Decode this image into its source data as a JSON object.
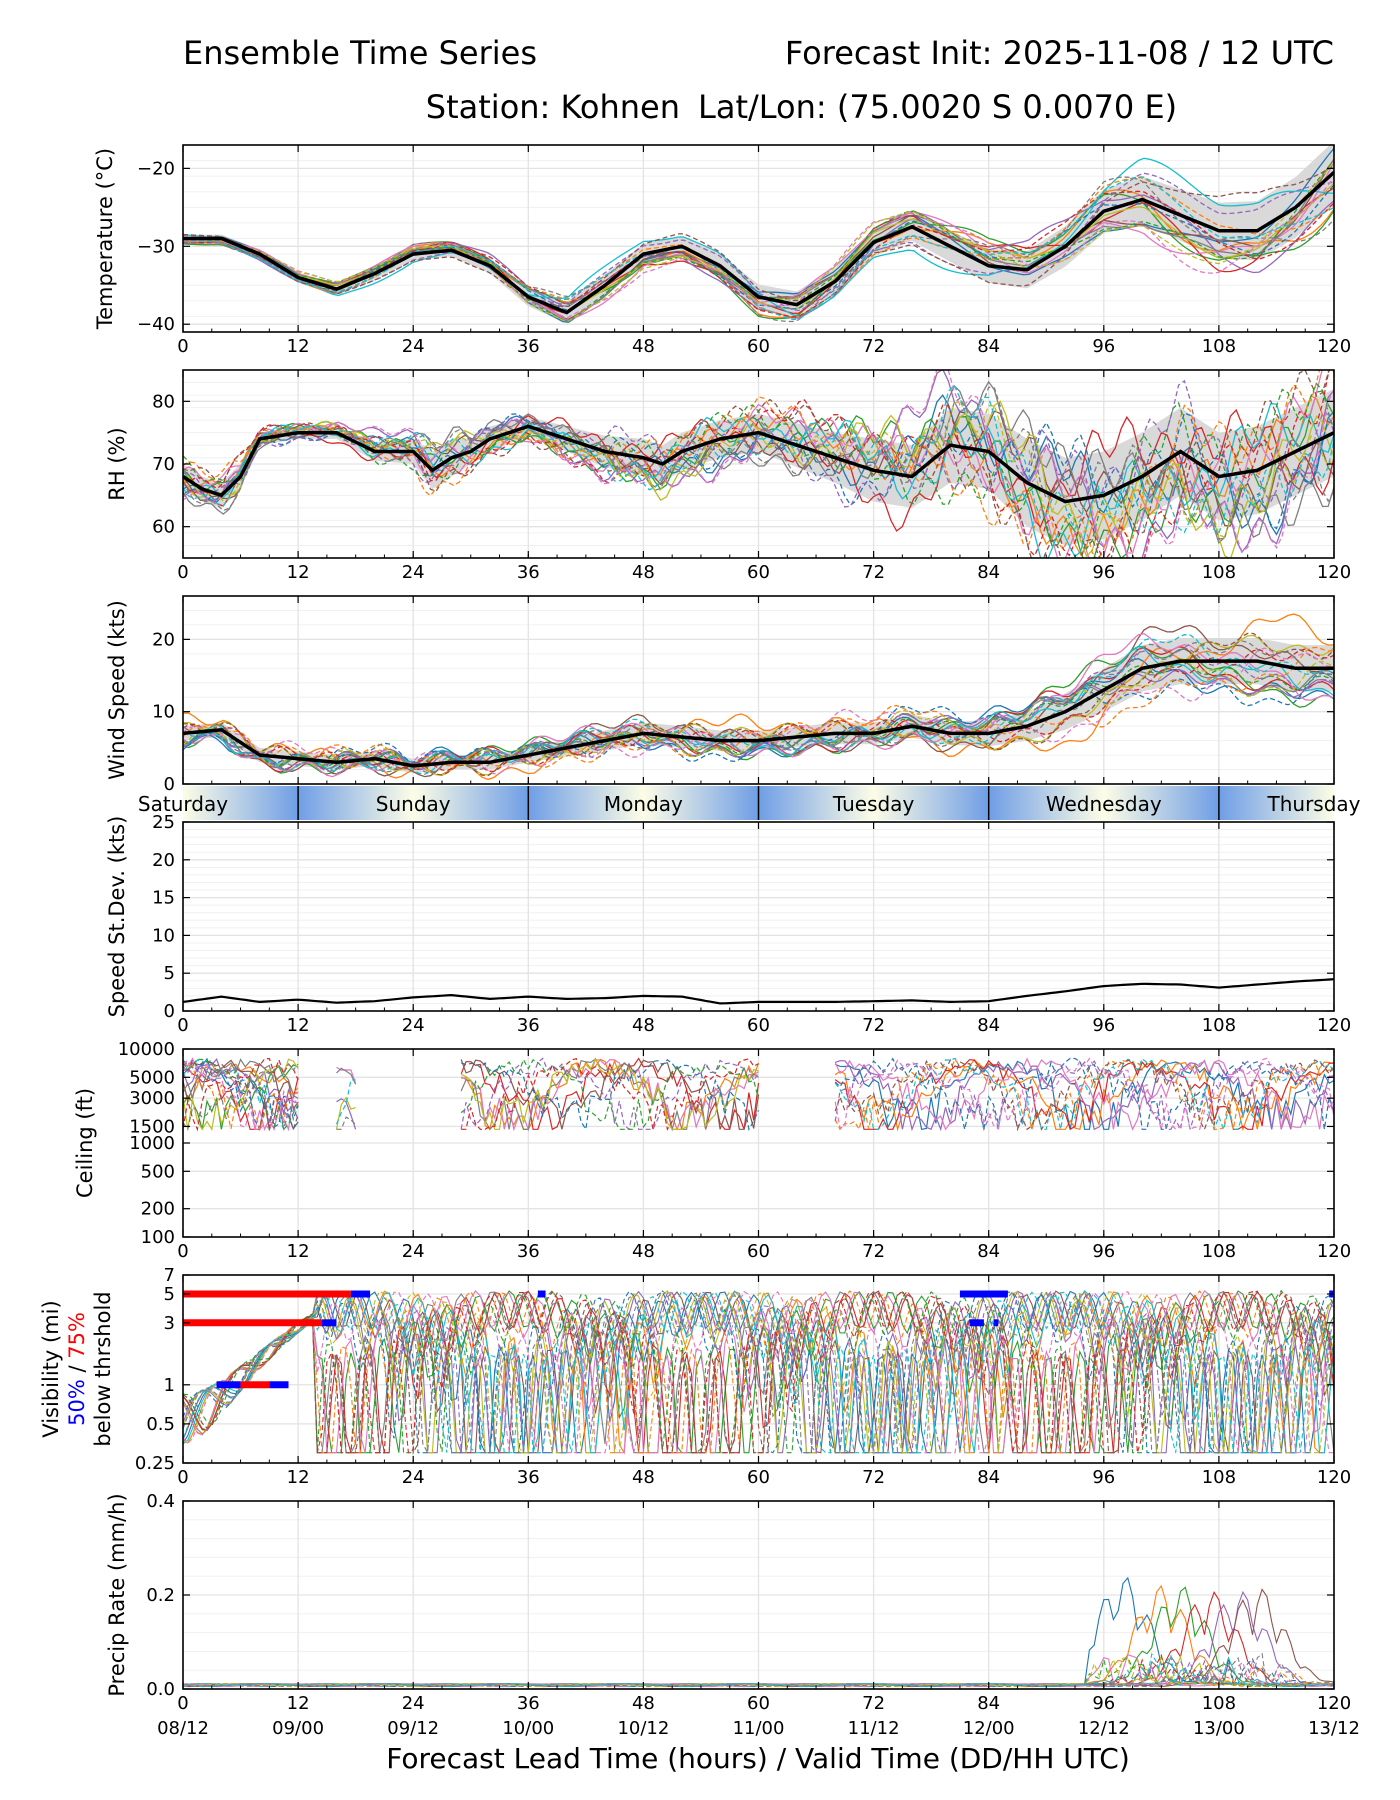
{
  "header": {
    "title_left": "Ensemble Time Series",
    "title_right": "Forecast Init: 2025-11-08 / 12 UTC",
    "station": "Station: Kohnen",
    "latlon": "Lat/Lon: (75.0020 S 0.0070 E)"
  },
  "colors": {
    "mean": "#000000",
    "spread": "#d9d9d9",
    "grid": "#e3e3e3",
    "vis50": "#0000ff",
    "vis75": "#ff0000",
    "day_gradient_edge": "#6f9ee6",
    "day_gradient_mid": "#fdfde6",
    "members": [
      "#1f77b4",
      "#ff7f0e",
      "#2ca02c",
      "#d62728",
      "#9467bd",
      "#8c564b",
      "#e377c2",
      "#7f7f7f",
      "#bcbd22",
      "#17becf"
    ]
  },
  "x_axis": {
    "range": [
      0,
      120
    ],
    "ticks": [
      0,
      12,
      24,
      36,
      48,
      60,
      72,
      84,
      96,
      108,
      120
    ],
    "valid_times": [
      "08/12",
      "09/00",
      "09/12",
      "10/00",
      "10/12",
      "11/00",
      "11/12",
      "12/00",
      "12/12",
      "13/00",
      "13/12"
    ],
    "xlabel": "Forecast Lead Time (hours) / Valid Time (DD/HH UTC)"
  },
  "day_bar": {
    "days": [
      "Saturday",
      "Sunday",
      "Monday",
      "Tuesday",
      "Wednesday",
      "Thursday"
    ],
    "boundaries": [
      12,
      36,
      60,
      84,
      108
    ]
  },
  "chart_data": [
    {
      "id": "temperature",
      "type": "line",
      "ylabel": "Temperature (°C)",
      "ylim": [
        -41,
        -17
      ],
      "yticks": [
        -40,
        -30,
        -20
      ],
      "x": [
        0,
        4,
        8,
        12,
        16,
        20,
        24,
        28,
        32,
        36,
        40,
        44,
        48,
        52,
        56,
        60,
        64,
        68,
        72,
        76,
        80,
        84,
        88,
        92,
        96,
        100,
        104,
        108,
        112,
        116,
        120
      ],
      "mean": [
        -29,
        -29,
        -31,
        -34,
        -35.5,
        -33.5,
        -31,
        -30.5,
        -32.5,
        -36.5,
        -38.5,
        -35,
        -31,
        -30,
        -32.5,
        -36.5,
        -37.5,
        -34.5,
        -29.5,
        -27.5,
        -30,
        -32.5,
        -33,
        -30,
        -25.5,
        -24,
        -26,
        -28,
        -28,
        -25,
        -20.5
      ],
      "spread": [
        0.5,
        0.5,
        0.6,
        0.6,
        0.7,
        0.7,
        0.8,
        0.8,
        1.0,
        1.2,
        1.4,
        1.4,
        1.3,
        1.3,
        1.5,
        1.6,
        1.7,
        1.7,
        1.8,
        1.8,
        2.0,
        2.2,
        2.4,
        2.6,
        2.8,
        3.0,
        3.3,
        3.6,
        3.8,
        3.9,
        4.0
      ]
    },
    {
      "id": "rh",
      "type": "line",
      "ylabel": "RH (%)",
      "ylim": [
        55,
        85
      ],
      "yticks": [
        60,
        70,
        80
      ],
      "x": [
        0,
        2,
        4,
        6,
        8,
        12,
        16,
        20,
        24,
        26,
        28,
        30,
        32,
        36,
        40,
        44,
        48,
        50,
        52,
        56,
        60,
        64,
        68,
        72,
        76,
        80,
        84,
        88,
        92,
        96,
        100,
        104,
        108,
        112,
        116,
        120
      ],
      "mean": [
        68,
        66,
        65,
        68,
        74,
        75,
        75,
        72,
        72,
        69,
        71,
        72,
        74,
        76,
        74,
        72,
        71,
        70,
        72,
        74,
        75,
        73,
        71,
        69,
        68,
        73,
        72,
        67,
        64,
        65,
        68,
        72,
        68,
        69,
        72,
        75
      ],
      "spread": [
        2,
        2,
        2,
        2,
        1,
        1,
        1,
        1.5,
        2,
        3,
        3,
        2,
        2,
        1.5,
        2,
        2.5,
        3,
        3,
        3,
        3,
        3,
        3.5,
        4,
        5,
        5,
        6,
        6,
        7,
        7,
        7,
        7,
        7,
        7,
        7,
        7,
        7
      ]
    },
    {
      "id": "wind",
      "type": "line",
      "ylabel": "Wind Speed (kts)",
      "ylim": [
        0,
        26
      ],
      "yticks": [
        0,
        10,
        20
      ],
      "x": [
        0,
        4,
        8,
        12,
        16,
        20,
        24,
        28,
        32,
        36,
        40,
        44,
        48,
        52,
        56,
        60,
        64,
        68,
        72,
        76,
        80,
        84,
        88,
        92,
        96,
        100,
        104,
        108,
        112,
        116,
        120
      ],
      "mean": [
        7,
        7.5,
        4,
        3.5,
        3,
        3.5,
        2.5,
        3,
        3,
        4,
        5,
        6,
        7,
        6.5,
        6,
        6,
        6.5,
        7,
        7,
        8,
        7,
        7,
        8,
        10,
        13,
        16,
        17,
        17,
        17,
        16,
        16
      ],
      "spread": [
        1,
        1,
        1,
        1,
        1,
        1,
        1,
        1,
        1,
        1,
        1.2,
        1.4,
        1.5,
        1.5,
        1.4,
        1.4,
        1.4,
        1.5,
        1.5,
        1.6,
        1.6,
        1.8,
        2,
        2.5,
        3,
        3.2,
        3.2,
        3.2,
        3.2,
        3.2,
        3.2
      ]
    },
    {
      "id": "speed_stdev",
      "type": "line",
      "ylabel": "Speed St.Dev. (kts)",
      "ylim": [
        0,
        25
      ],
      "yticks": [
        0,
        5,
        10,
        15,
        20,
        25
      ],
      "x": [
        0,
        4,
        8,
        12,
        16,
        20,
        24,
        28,
        32,
        36,
        40,
        44,
        48,
        52,
        56,
        60,
        64,
        68,
        72,
        76,
        80,
        84,
        88,
        92,
        96,
        100,
        104,
        108,
        112,
        116,
        120
      ],
      "mean": [
        1.2,
        1.9,
        1.2,
        1.5,
        1.1,
        1.3,
        1.8,
        2.1,
        1.6,
        1.9,
        1.6,
        1.7,
        2.0,
        1.9,
        1.0,
        1.2,
        1.2,
        1.2,
        1.3,
        1.4,
        1.2,
        1.3,
        2.0,
        2.6,
        3.3,
        3.6,
        3.5,
        3.1,
        3.5,
        3.9,
        4.2
      ]
    },
    {
      "id": "ceiling",
      "type": "line",
      "ylabel": "Ceiling (ft)",
      "yscale": "log",
      "ylim": [
        100,
        10000
      ],
      "yticks": [
        100,
        200,
        500,
        1000,
        1500,
        3000,
        5000,
        10000
      ]
    },
    {
      "id": "visibility",
      "type": "line",
      "ylabel": "Visibility (mi)",
      "ylabel_50": "50%",
      "ylabel_sep": " / ",
      "ylabel_75": "75%",
      "ylabel_below": "below thrshold",
      "yscale": "log",
      "ylim": [
        0.25,
        7
      ],
      "yticks": [
        0.25,
        0.5,
        1,
        3,
        5,
        7
      ],
      "threshold_bars": [
        {
          "level": 5,
          "pct": 75,
          "x": [
            0,
            17.5
          ]
        },
        {
          "level": 5,
          "pct": 50,
          "x": [
            17.5,
            19.5
          ]
        },
        {
          "level": 3,
          "pct": 75,
          "x": [
            0,
            14.5
          ]
        },
        {
          "level": 3,
          "pct": 50,
          "x": [
            14.5,
            16
          ]
        },
        {
          "level": 1,
          "pct": 50,
          "x": [
            3.5,
            6
          ]
        },
        {
          "level": 1,
          "pct": 75,
          "x": [
            6,
            9
          ]
        },
        {
          "level": 1,
          "pct": 50,
          "x": [
            9,
            11
          ]
        },
        {
          "level": 5,
          "pct": 50,
          "x": [
            37,
            37.8
          ]
        },
        {
          "level": 5,
          "pct": 50,
          "x": [
            81,
            86
          ]
        },
        {
          "level": 3,
          "pct": 50,
          "x": [
            82,
            83.5
          ]
        },
        {
          "level": 3,
          "pct": 50,
          "x": [
            84.5,
            85
          ]
        },
        {
          "level": 5,
          "pct": 50,
          "x": [
            119.5,
            120
          ]
        }
      ]
    },
    {
      "id": "precip",
      "type": "line",
      "ylabel": "Precip Rate (mm/h)",
      "ylim": [
        0,
        0.4
      ],
      "yticks": [
        0.0,
        0.2,
        0.4
      ],
      "ytick_labels": [
        "0.0",
        "0.2",
        "0.4"
      ],
      "peaks": [
        {
          "x": 98,
          "y": 0.23
        },
        {
          "x": 102,
          "y": 0.21
        },
        {
          "x": 104,
          "y": 0.21
        },
        {
          "x": 107,
          "y": 0.2
        },
        {
          "x": 110,
          "y": 0.2
        },
        {
          "x": 112,
          "y": 0.21
        }
      ]
    }
  ]
}
